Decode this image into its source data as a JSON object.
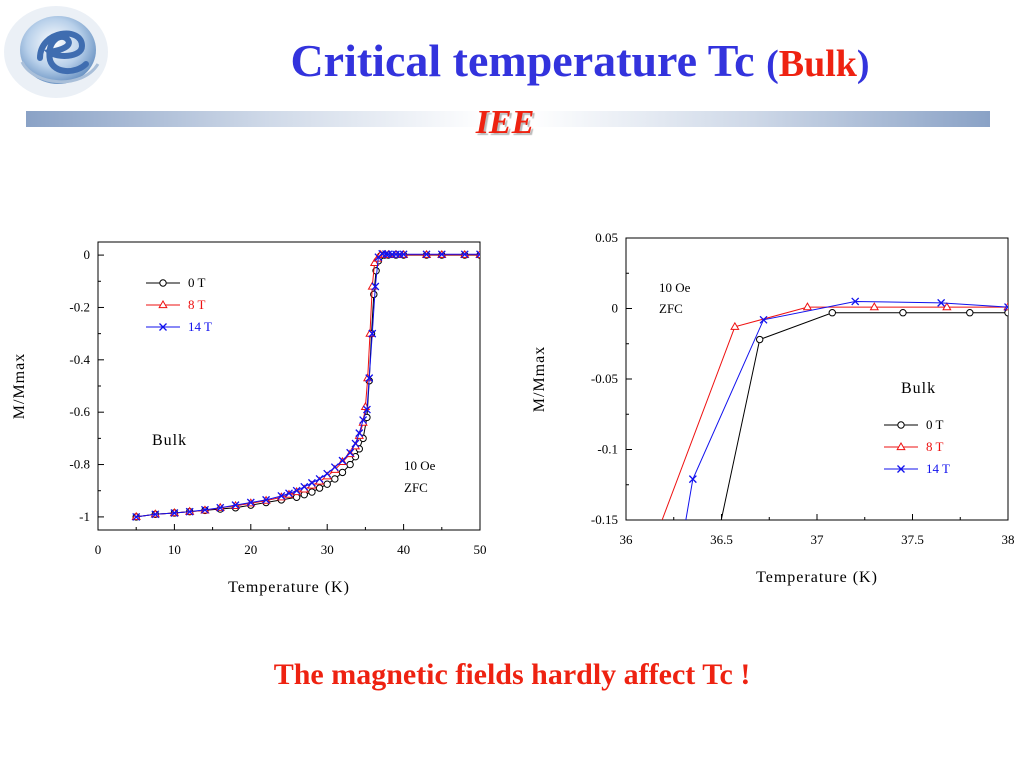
{
  "header": {
    "title_main": "Critical temperature Tc",
    "title_paren_open": "(",
    "title_accent": "Bulk",
    "title_paren_close": ")",
    "subtitle": "IEE",
    "logo": "globe-e-logo"
  },
  "colors": {
    "title": "#3333dd",
    "accent": "#ee2211",
    "series_0T": "#000000",
    "series_8T": "#ee1111",
    "series_14T": "#1111ee",
    "band": "#8aa2c6"
  },
  "caption": "The magnetic fields hardly affect Tc !",
  "chart_data": [
    {
      "type": "line",
      "xlabel": "Temperature (K)",
      "ylabel": "M/Mmax",
      "xlim": [
        0,
        50
      ],
      "ylim": [
        -1.05,
        0.05
      ],
      "xticks": [
        "0",
        "10",
        "20",
        "30",
        "40",
        "50"
      ],
      "yticks": [
        "0",
        "-0.2",
        "-0.4",
        "-0.6",
        "-0.8",
        "-1"
      ],
      "legend": "top-left",
      "annotations": [
        "Bulk",
        "10 Oe",
        "ZFC"
      ],
      "grid": false,
      "series": [
        {
          "name": "0 T",
          "marker": "circle",
          "x": [
            5,
            7.5,
            10,
            12,
            14,
            16,
            18,
            20,
            22,
            24,
            26,
            27,
            28,
            29,
            30,
            31,
            32,
            33,
            33.7,
            34.2,
            34.7,
            35.2,
            35.5,
            35.8,
            36.1,
            36.4,
            36.7,
            37.0,
            37.5,
            38,
            39,
            40,
            43,
            45,
            48,
            50
          ],
          "y": [
            -1,
            -0.99,
            -0.985,
            -0.98,
            -0.975,
            -0.97,
            -0.965,
            -0.955,
            -0.945,
            -0.935,
            -0.925,
            -0.915,
            -0.905,
            -0.89,
            -0.875,
            -0.855,
            -0.83,
            -0.8,
            -0.77,
            -0.74,
            -0.7,
            -0.62,
            -0.48,
            -0.3,
            -0.15,
            -0.06,
            -0.022,
            -0.003,
            0,
            0,
            0,
            0,
            0,
            0,
            0,
            0
          ]
        },
        {
          "name": "8 T",
          "marker": "triangle",
          "x": [
            5,
            7.5,
            10,
            12,
            14,
            16,
            18,
            20,
            22,
            24,
            25,
            26,
            27,
            28,
            29,
            30,
            31,
            32,
            33,
            33.7,
            34.2,
            34.7,
            35.0,
            35.3,
            35.6,
            35.9,
            36.2,
            36.6,
            37.0,
            37.5,
            38,
            39,
            40,
            43,
            45,
            48,
            50
          ],
          "y": [
            -1,
            -0.99,
            -0.985,
            -0.98,
            -0.975,
            -0.965,
            -0.958,
            -0.948,
            -0.938,
            -0.925,
            -0.915,
            -0.905,
            -0.895,
            -0.88,
            -0.865,
            -0.845,
            -0.82,
            -0.79,
            -0.76,
            -0.73,
            -0.69,
            -0.64,
            -0.58,
            -0.47,
            -0.3,
            -0.12,
            -0.03,
            -0.013,
            0.001,
            0.001,
            0.001,
            0.001,
            0.001,
            0.001,
            0.001,
            0.001,
            0.001
          ]
        },
        {
          "name": "14 T",
          "marker": "x",
          "x": [
            5,
            7.5,
            10,
            12,
            14,
            16,
            18,
            20,
            22,
            24,
            25,
            26,
            27,
            28,
            29,
            30,
            31,
            32,
            33,
            33.7,
            34.2,
            34.7,
            35.2,
            35.5,
            35.9,
            36.3,
            36.7,
            37.2,
            37.7,
            38,
            38.5,
            39,
            39.5,
            40,
            43,
            45,
            48,
            50
          ],
          "y": [
            -1,
            -0.99,
            -0.985,
            -0.98,
            -0.973,
            -0.965,
            -0.955,
            -0.945,
            -0.935,
            -0.92,
            -0.91,
            -0.9,
            -0.885,
            -0.87,
            -0.855,
            -0.835,
            -0.81,
            -0.785,
            -0.755,
            -0.72,
            -0.68,
            -0.63,
            -0.59,
            -0.47,
            -0.3,
            -0.12,
            -0.008,
            0.005,
            0.004,
            0.003,
            0.003,
            0.003,
            0.003,
            0.003,
            0.003,
            0.003,
            0.003,
            0.003
          ]
        }
      ]
    },
    {
      "type": "line",
      "xlabel": "Temperature (K)",
      "ylabel": "M/Mmax",
      "xlim": [
        36,
        38
      ],
      "ylim": [
        -0.15,
        0.05
      ],
      "xticks": [
        "36",
        "36.5",
        "37",
        "37.5",
        "38"
      ],
      "yticks": [
        "0.05",
        "0",
        "-0.05",
        "-0.1",
        "-0.15"
      ],
      "legend": "right",
      "annotations": [
        "10 Oe",
        "ZFC",
        "Bulk"
      ],
      "grid": false,
      "series": [
        {
          "name": "0 T",
          "marker": "circle",
          "x": [
            36.42,
            36.7,
            37.08,
            37.45,
            37.8,
            38.0
          ],
          "y": [
            -0.2,
            -0.022,
            -0.003,
            -0.003,
            -0.003,
            -0.003
          ]
        },
        {
          "name": "8 T",
          "marker": "triangle",
          "x": [
            36.05,
            36.57,
            36.95,
            37.3,
            37.68,
            38.0
          ],
          "y": [
            -0.2,
            -0.013,
            0.001,
            0.001,
            0.001,
            0.001
          ]
        },
        {
          "name": "14 T",
          "marker": "x",
          "x": [
            36.25,
            36.35,
            36.72,
            37.2,
            37.65,
            38.0
          ],
          "y": [
            -0.2,
            -0.121,
            -0.008,
            0.005,
            0.004,
            0.001
          ]
        }
      ]
    }
  ]
}
